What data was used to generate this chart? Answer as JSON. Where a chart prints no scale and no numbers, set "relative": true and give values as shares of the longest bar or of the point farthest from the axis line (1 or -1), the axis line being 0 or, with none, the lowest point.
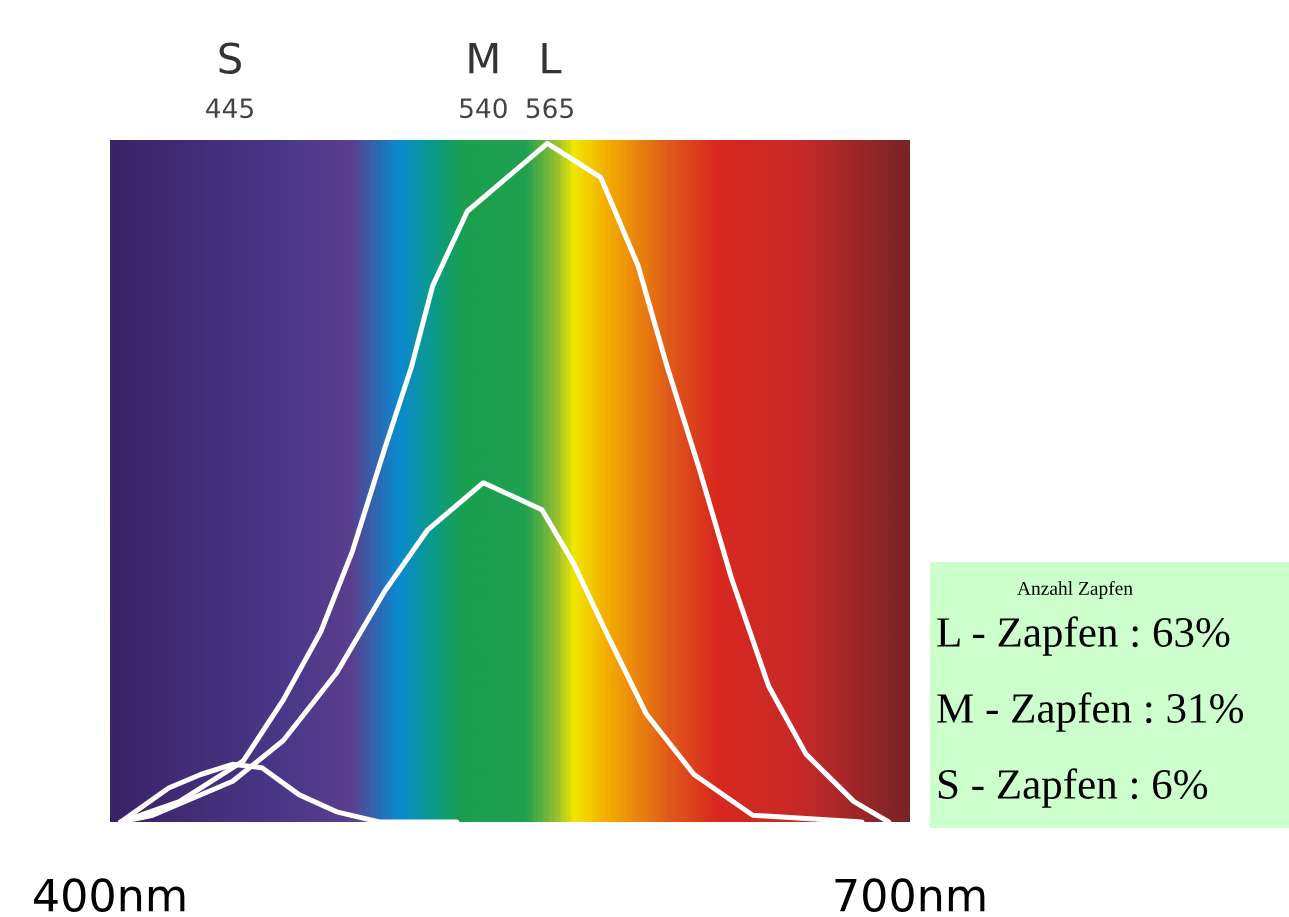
{
  "chart_data": {
    "type": "line",
    "relative": true,
    "xlim": [
      400,
      700
    ],
    "xticks": [
      {
        "value": 400,
        "label": "400nm"
      },
      {
        "value": 700,
        "label": "700nm"
      }
    ],
    "x2lim": [
      400,
      700
    ],
    "x2ticks": [
      445,
      540,
      565
    ],
    "tick_labels": "x",
    "grid": false,
    "legend": false,
    "marker": "none",
    "line_style": "solid",
    "series": [
      {
        "color": "#ffffff",
        "x": [
          404,
          426,
          450,
          465,
          479,
          491,
          503,
          513,
          521,
          534,
          564,
          584,
          598,
          609,
          621,
          633,
          647,
          661,
          679,
          692
        ],
        "values": [
          0,
          0.03,
          0.09,
          0.18,
          0.28,
          0.4,
          0.55,
          0.67,
          0.79,
          0.9,
          1,
          0.95,
          0.82,
          0.67,
          0.52,
          0.36,
          0.2,
          0.1,
          0.03,
          0
        ]
      },
      {
        "color": "#ffffff",
        "x": [
          404,
          416,
          446,
          465,
          485,
          503,
          519,
          540,
          562,
          574,
          586,
          601,
          619,
          641,
          682
        ],
        "values": [
          0,
          0.01,
          0.06,
          0.12,
          0.22,
          0.34,
          0.43,
          0.5,
          0.46,
          0.38,
          0.28,
          0.16,
          0.07,
          0.01,
          0
        ]
      },
      {
        "color": "#ffffff",
        "x": [
          404,
          422,
          434,
          446,
          457,
          471,
          485,
          501,
          530
        ],
        "values": [
          0,
          0.05,
          0.07,
          0.085,
          0.08,
          0.04,
          0.015,
          0,
          0
        ]
      }
    ],
    "annotations": [
      "S",
      "M",
      "L",
      "Anzahl Zapfen",
      "L - Zapfen : 63%",
      "M - Zapfen : 31%",
      "S - Zapfen : 6%"
    ]
  }
}
